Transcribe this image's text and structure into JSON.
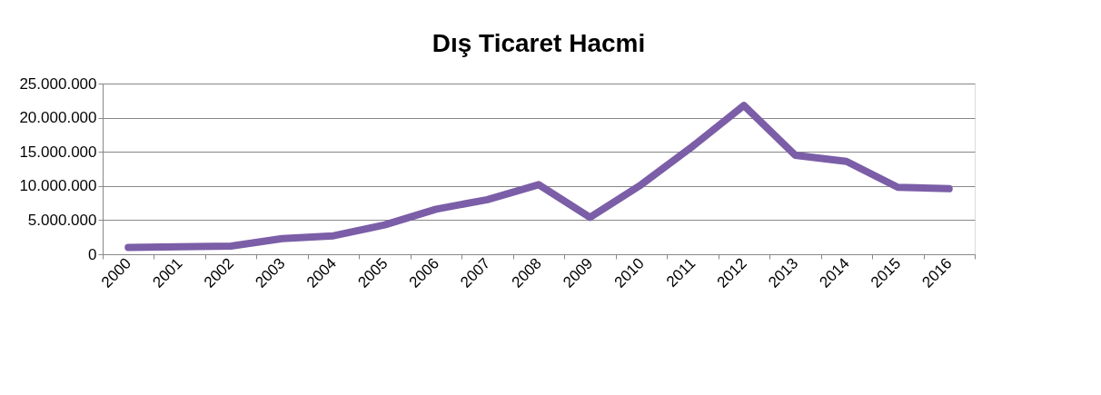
{
  "chart_data": {
    "type": "line",
    "title": "Dış Ticaret Hacmi",
    "categories": [
      "2000",
      "2001",
      "2002",
      "2003",
      "2004",
      "2005",
      "2006",
      "2007",
      "2008",
      "2009",
      "2010",
      "2011",
      "2012",
      "2013",
      "2014",
      "2015",
      "2016"
    ],
    "series": [
      {
        "color": "#7b5ea7",
        "values": [
          1000000,
          1100000,
          1200000,
          2300000,
          2700000,
          4300000,
          6600000,
          8000000,
          10200000,
          5400000,
          10200000,
          15800000,
          21800000,
          14500000,
          13600000,
          9800000,
          9600000
        ]
      }
    ],
    "ylim": [
      0,
      25000000
    ],
    "yticks": [
      {
        "value": 0,
        "label": "0"
      },
      {
        "value": 5000000,
        "label": "5.000.000"
      },
      {
        "value": 10000000,
        "label": "10.000.000"
      },
      {
        "value": 15000000,
        "label": "15.000.000"
      },
      {
        "value": 20000000,
        "label": "20.000.000"
      },
      {
        "value": 25000000,
        "label": "25.000.000"
      }
    ],
    "grid": "y",
    "marker": "none",
    "line_style": "solid"
  }
}
